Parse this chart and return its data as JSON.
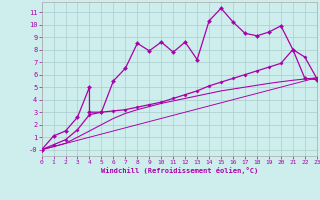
{
  "xlabel": "Windchill (Refroidissement éolien,°C)",
  "background_color": "#cdeeed",
  "grid_color": "#aacccc",
  "line_color": "#aa00aa",
  "xlim": [
    0,
    23
  ],
  "ylim": [
    -0.5,
    11.8
  ],
  "xticks": [
    0,
    1,
    2,
    3,
    4,
    5,
    6,
    7,
    8,
    9,
    10,
    11,
    12,
    13,
    14,
    15,
    16,
    17,
    18,
    19,
    20,
    21,
    22,
    23
  ],
  "yticks": [
    0,
    1,
    2,
    3,
    4,
    5,
    6,
    7,
    8,
    9,
    10,
    11
  ],
  "series1_x": [
    0,
    1,
    2,
    3,
    4,
    4,
    5,
    6,
    7,
    8,
    9,
    10,
    11,
    12,
    13,
    14,
    15,
    16,
    17,
    18,
    19,
    20,
    21,
    22,
    23
  ],
  "series1_y": [
    0.0,
    1.1,
    1.5,
    2.6,
    5.0,
    3.0,
    3.0,
    5.5,
    6.5,
    8.5,
    7.9,
    8.6,
    7.8,
    8.6,
    7.2,
    10.3,
    11.3,
    10.2,
    9.3,
    9.1,
    9.4,
    9.9,
    8.0,
    5.7,
    5.6
  ],
  "series2_x": [
    0,
    1,
    2,
    3,
    4,
    5,
    6,
    7,
    8,
    9,
    10,
    11,
    12,
    13,
    14,
    15,
    16,
    17,
    18,
    19,
    20,
    21,
    22,
    23
  ],
  "series2_y": [
    0.0,
    0.4,
    0.8,
    1.6,
    2.8,
    3.0,
    3.1,
    3.2,
    3.4,
    3.6,
    3.8,
    4.1,
    4.4,
    4.7,
    5.1,
    5.4,
    5.7,
    6.0,
    6.3,
    6.6,
    6.9,
    8.0,
    7.4,
    5.7
  ],
  "series3_x": [
    0,
    1,
    2,
    3,
    4,
    5,
    6,
    7,
    8,
    9,
    10,
    11,
    12,
    13,
    14,
    15,
    16,
    17,
    18,
    19,
    20,
    21,
    22,
    23
  ],
  "series3_y": [
    0.0,
    0.25,
    0.52,
    1.0,
    1.5,
    2.0,
    2.5,
    2.9,
    3.2,
    3.45,
    3.7,
    3.9,
    4.1,
    4.3,
    4.5,
    4.7,
    4.85,
    5.0,
    5.15,
    5.3,
    5.43,
    5.55,
    5.65,
    5.75
  ],
  "series4_x": [
    0,
    23
  ],
  "series4_y": [
    0.0,
    5.75
  ]
}
